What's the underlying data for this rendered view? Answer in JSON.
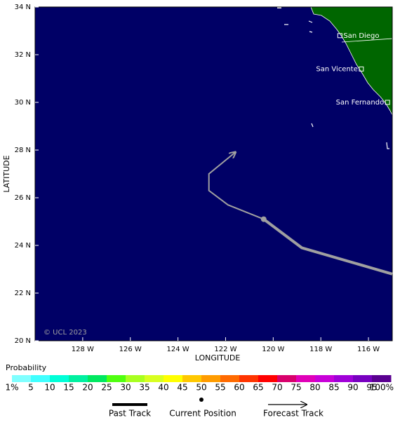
{
  "map": {
    "xlim": [
      -130,
      -115
    ],
    "ylim": [
      20,
      34
    ],
    "xticks": [
      {
        "value": -128,
        "label": "128 W"
      },
      {
        "value": -126,
        "label": "126 W"
      },
      {
        "value": -124,
        "label": "124 W"
      },
      {
        "value": -122,
        "label": "122 W"
      },
      {
        "value": -120,
        "label": "120 W"
      },
      {
        "value": -118,
        "label": "118 W"
      },
      {
        "value": -116,
        "label": "116 W"
      }
    ],
    "yticks": [
      {
        "value": 20,
        "label": "20 N"
      },
      {
        "value": 22,
        "label": "22 N"
      },
      {
        "value": 24,
        "label": "24 N"
      },
      {
        "value": 26,
        "label": "26 N"
      },
      {
        "value": 28,
        "label": "28 N"
      },
      {
        "value": 30,
        "label": "30 N"
      },
      {
        "value": 32,
        "label": "32 N"
      },
      {
        "value": 34,
        "label": "34 N"
      }
    ],
    "x_label": "LONGITUDE",
    "y_label": "LATITUDE",
    "copyright": "© UCL 2023",
    "past_track": {
      "lon": [
        -115.0,
        -118.8,
        -120.4
      ],
      "lat": [
        22.8,
        23.9,
        25.1
      ]
    },
    "current_position": {
      "lon": -120.4,
      "lat": 25.1
    },
    "forecast_track": {
      "lon": [
        -120.4,
        -121.9,
        -122.7,
        -122.7,
        -121.6
      ],
      "lat": [
        25.1,
        25.7,
        26.3,
        27.0,
        27.9
      ]
    },
    "cities": [
      {
        "name": "San Diego",
        "lon": -117.2,
        "lat": 32.8
      },
      {
        "name": "San Vicente",
        "lon": -116.3,
        "lat": 31.4
      },
      {
        "name": "San Fernando",
        "lon": -115.2,
        "lat": 30.0
      }
    ]
  },
  "colorbar": {
    "title": "Probability",
    "ticks": [
      {
        "value": 1,
        "label": "1%"
      },
      5,
      10,
      15,
      20,
      25,
      30,
      35,
      40,
      45,
      50,
      55,
      60,
      65,
      70,
      75,
      80,
      85,
      90,
      95,
      {
        "value": 100,
        "label": "100%"
      }
    ],
    "colors": [
      "#80ffff",
      "#40ffff",
      "#00ffd8",
      "#00f0a0",
      "#00e860",
      "#50ff10",
      "#a8ff20",
      "#d8ff20",
      "#ffff00",
      "#ffc800",
      "#ff9c00",
      "#ff6a00",
      "#ff3400",
      "#ff0000",
      "#d8006c",
      "#e000b8",
      "#c800d8",
      "#a000d8",
      "#7800c0",
      "#5a0090"
    ]
  },
  "legend": {
    "past_track": "Past Track",
    "current_position": "Current Position",
    "forecast_track": "Forecast Track"
  }
}
